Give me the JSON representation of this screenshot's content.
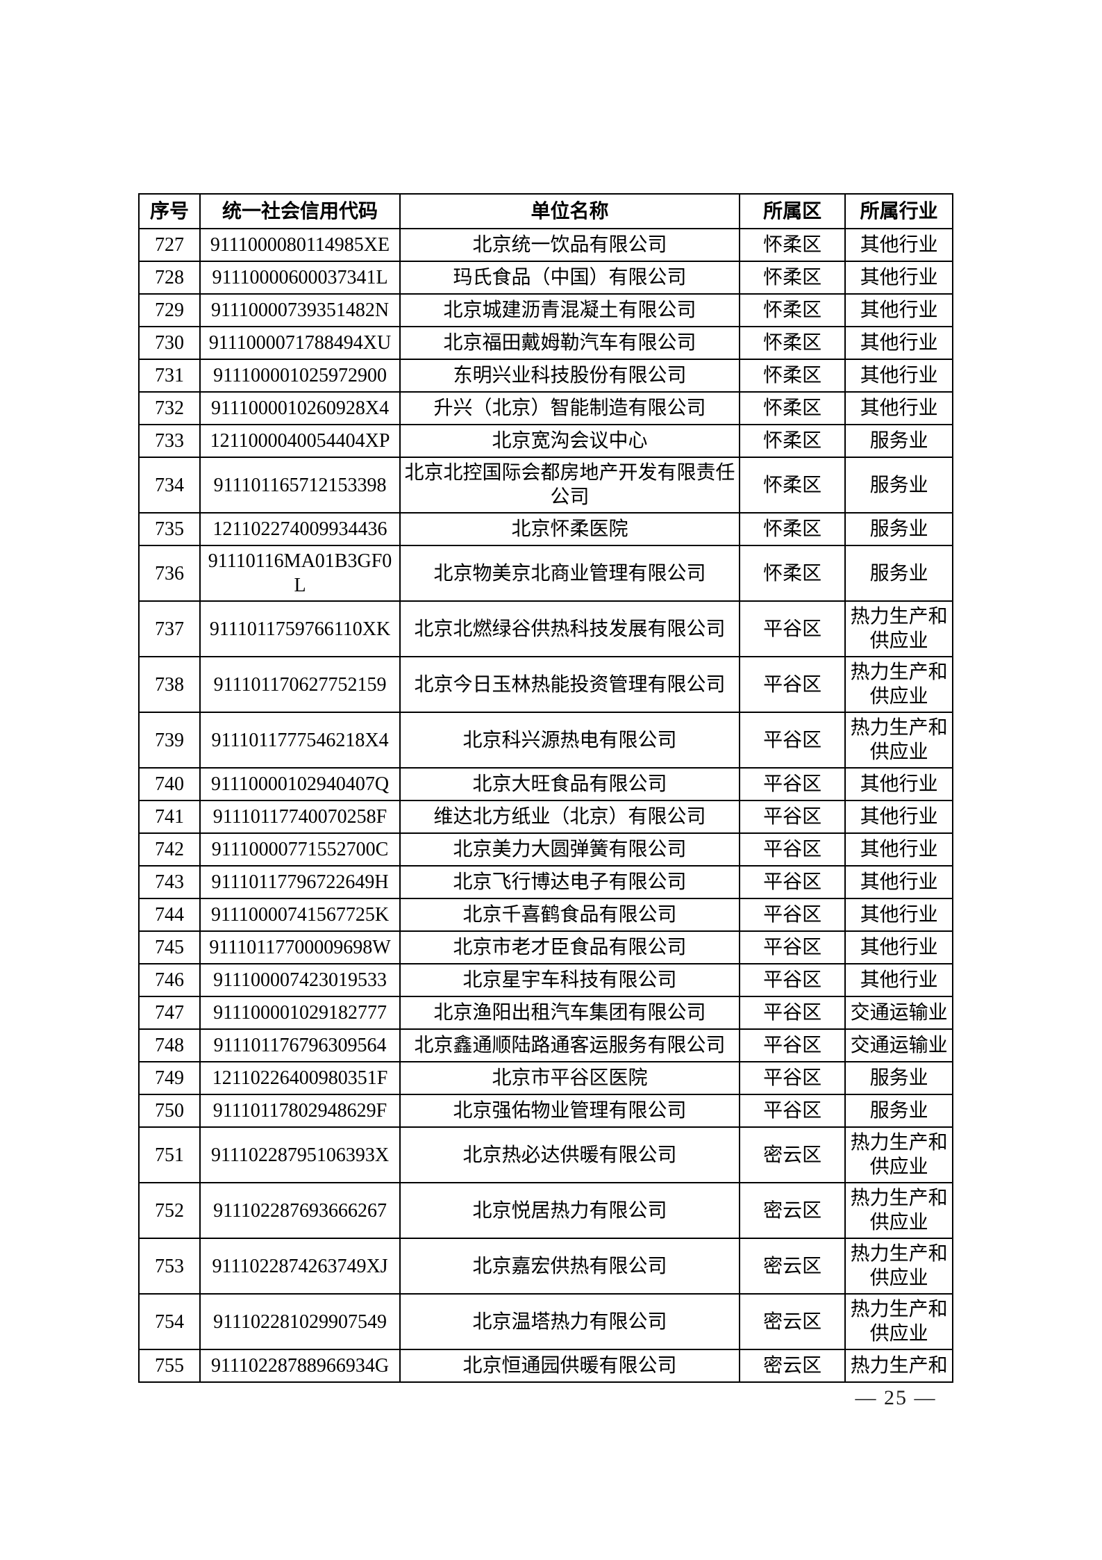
{
  "footer": {
    "page_label": "— 25 —"
  },
  "table": {
    "columns": [
      {
        "key": "no",
        "label": "序号"
      },
      {
        "key": "code",
        "label": "统一社会信用代码"
      },
      {
        "key": "name",
        "label": "单位名称"
      },
      {
        "key": "district",
        "label": "所属区"
      },
      {
        "key": "industry",
        "label": "所属行业"
      }
    ],
    "rows": [
      {
        "no": "727",
        "code": "9111000080114985XE",
        "name": "北京统一饮品有限公司",
        "district": "怀柔区",
        "industry": "其他行业"
      },
      {
        "no": "728",
        "code": "91110000600037341L",
        "name": "玛氏食品（中国）有限公司",
        "district": "怀柔区",
        "industry": "其他行业"
      },
      {
        "no": "729",
        "code": "91110000739351482N",
        "name": "北京城建沥青混凝土有限公司",
        "district": "怀柔区",
        "industry": "其他行业"
      },
      {
        "no": "730",
        "code": "9111000071788494XU",
        "name": "北京福田戴姆勒汽车有限公司",
        "district": "怀柔区",
        "industry": "其他行业"
      },
      {
        "no": "731",
        "code": "911100001025972900",
        "name": "东明兴业科技股份有限公司",
        "district": "怀柔区",
        "industry": "其他行业"
      },
      {
        "no": "732",
        "code": "9111000010260928X4",
        "name": "升兴（北京）智能制造有限公司",
        "district": "怀柔区",
        "industry": "其他行业"
      },
      {
        "no": "733",
        "code": "1211000040054404XP",
        "name": "北京宽沟会议中心",
        "district": "怀柔区",
        "industry": "服务业"
      },
      {
        "no": "734",
        "code": "911101165712153398",
        "name": "北京北控国际会都房地产开发有限责任公司",
        "district": "怀柔区",
        "industry": "服务业"
      },
      {
        "no": "735",
        "code": "121102274009934436",
        "name": "北京怀柔医院",
        "district": "怀柔区",
        "industry": "服务业"
      },
      {
        "no": "736",
        "code": "91110116MA01B3GF0L",
        "name": "北京物美京北商业管理有限公司",
        "district": "怀柔区",
        "industry": "服务业"
      },
      {
        "no": "737",
        "code": "9111011759766110XK",
        "name": "北京北燃绿谷供热科技发展有限公司",
        "district": "平谷区",
        "industry": "热力生产和供应业"
      },
      {
        "no": "738",
        "code": "911101170627752159",
        "name": "北京今日玉林热能投资管理有限公司",
        "district": "平谷区",
        "industry": "热力生产和供应业"
      },
      {
        "no": "739",
        "code": "9111011777546218X4",
        "name": "北京科兴源热电有限公司",
        "district": "平谷区",
        "industry": "热力生产和供应业"
      },
      {
        "no": "740",
        "code": "91110000102940407Q",
        "name": "北京大旺食品有限公司",
        "district": "平谷区",
        "industry": "其他行业"
      },
      {
        "no": "741",
        "code": "91110117740070258F",
        "name": "维达北方纸业（北京）有限公司",
        "district": "平谷区",
        "industry": "其他行业"
      },
      {
        "no": "742",
        "code": "91110000771552700C",
        "name": "北京美力大圆弹簧有限公司",
        "district": "平谷区",
        "industry": "其他行业"
      },
      {
        "no": "743",
        "code": "91110117796722649H",
        "name": "北京飞行博达电子有限公司",
        "district": "平谷区",
        "industry": "其他行业"
      },
      {
        "no": "744",
        "code": "91110000741567725K",
        "name": "北京千喜鹤食品有限公司",
        "district": "平谷区",
        "industry": "其他行业"
      },
      {
        "no": "745",
        "code": "91110117700009698W",
        "name": "北京市老才臣食品有限公司",
        "district": "平谷区",
        "industry": "其他行业"
      },
      {
        "no": "746",
        "code": "911100007423019533",
        "name": "北京星宇车科技有限公司",
        "district": "平谷区",
        "industry": "其他行业"
      },
      {
        "no": "747",
        "code": "911100001029182777",
        "name": "北京渔阳出租汽车集团有限公司",
        "district": "平谷区",
        "industry": "交通运输业"
      },
      {
        "no": "748",
        "code": "911101176796309564",
        "name": "北京鑫通顺陆路通客运服务有限公司",
        "district": "平谷区",
        "industry": "交通运输业"
      },
      {
        "no": "749",
        "code": "12110226400980351F",
        "name": "北京市平谷区医院",
        "district": "平谷区",
        "industry": "服务业"
      },
      {
        "no": "750",
        "code": "91110117802948629F",
        "name": "北京强佑物业管理有限公司",
        "district": "平谷区",
        "industry": "服务业"
      },
      {
        "no": "751",
        "code": "91110228795106393X",
        "name": "北京热必达供暖有限公司",
        "district": "密云区",
        "industry": "热力生产和供应业"
      },
      {
        "no": "752",
        "code": "911102287693666267",
        "name": "北京悦居热力有限公司",
        "district": "密云区",
        "industry": "热力生产和供应业"
      },
      {
        "no": "753",
        "code": "9111022874263749XJ",
        "name": "北京嘉宏供热有限公司",
        "district": "密云区",
        "industry": "热力生产和供应业"
      },
      {
        "no": "754",
        "code": "911102281029907549",
        "name": "北京温塔热力有限公司",
        "district": "密云区",
        "industry": "热力生产和供应业"
      },
      {
        "no": "755",
        "code": "91110228788966934G",
        "name": "北京恒通园供暖有限公司",
        "district": "密云区",
        "industry": "热力生产和"
      }
    ]
  }
}
